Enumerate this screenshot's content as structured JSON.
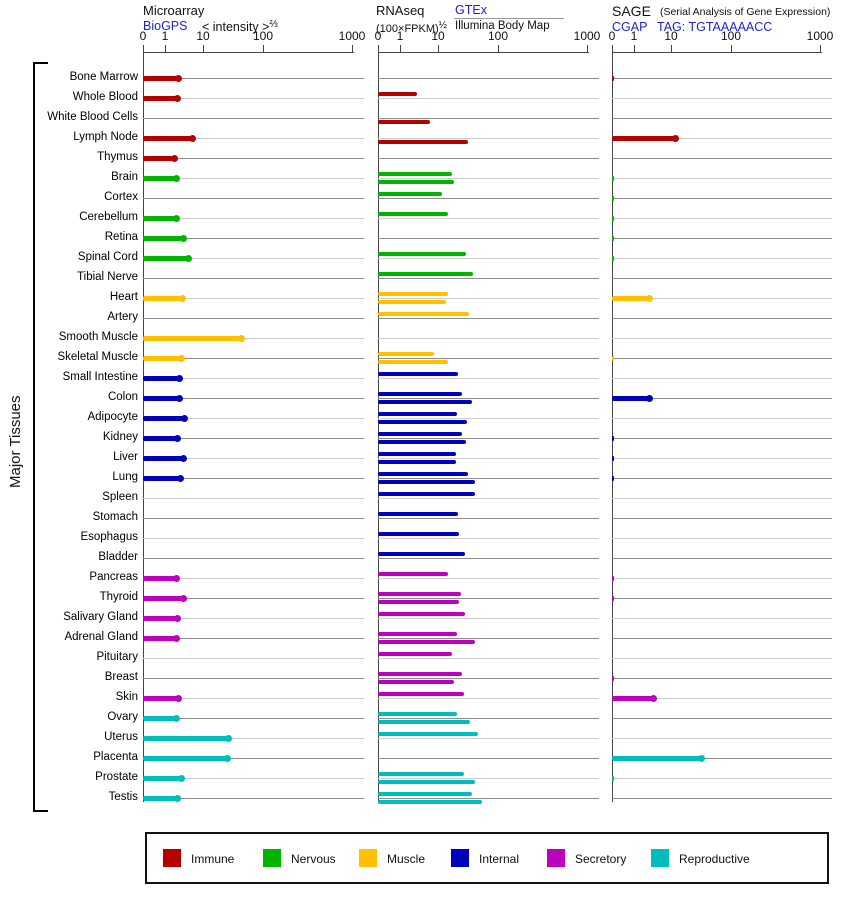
{
  "header": {
    "microarray": {
      "title": "Microarray",
      "link": "BioGPS",
      "units": "< intensity >",
      "units_sup": "⅔"
    },
    "rnaseq": {
      "title": "RNAseq",
      "units": "(100×FPKM)",
      "units_sup": "½",
      "source1": "GTEx",
      "source2": "Illumina Body Map"
    },
    "sage": {
      "title": "SAGE",
      "subtitle": "(Serial Analysis of Gene Expression)",
      "link": "CGAP",
      "tag": "TAG: TGTAAAAACC"
    }
  },
  "left_label": "Major Tissues",
  "axis": {
    "tick_labels": [
      "0",
      "1",
      "10",
      "100",
      "1000"
    ],
    "tick_values": [
      0,
      1,
      10,
      100,
      1000
    ]
  },
  "colors": {
    "link": "#2222cc",
    "axis": "#444444",
    "grid_dark": "#8d8d8d",
    "grid_light": "#cacaca"
  },
  "legend": {
    "items": [
      {
        "key": "immune",
        "label": "Immune"
      },
      {
        "key": "nervous",
        "label": "Nervous"
      },
      {
        "key": "muscle",
        "label": "Muscle"
      },
      {
        "key": "internal",
        "label": "Internal"
      },
      {
        "key": "secretory",
        "label": "Secretory"
      },
      {
        "key": "reproductive",
        "label": "Reproductive"
      }
    ]
  },
  "chart_data": {
    "type": "bar",
    "orientation": "horizontal",
    "x_scale": "zero-inset log scale, ticks at 0 / 1 / 10 / 100 / 1000",
    "xlim": [
      0,
      1000
    ],
    "title": "Gene expression in major tissues (Microarray / RNAseq / SAGE)",
    "group_colors": {
      "immune": "#b50000",
      "nervous": "#00b400",
      "muscle": "#ffc000",
      "internal": "#0000bd",
      "secretory": "#bd00bd",
      "reproductive": "#00bdbd"
    },
    "categories": [
      "Bone Marrow",
      "Whole Blood",
      "White Blood Cells",
      "Lymph Node",
      "Thymus",
      "Brain",
      "Cortex",
      "Cerebellum",
      "Retina",
      "Spinal Cord",
      "Tibial Nerve",
      "Heart",
      "Artery",
      "Smooth Muscle",
      "Skeletal Muscle",
      "Small Intestine",
      "Colon",
      "Adipocyte",
      "Kidney",
      "Liver",
      "Lung",
      "Spleen",
      "Stomach",
      "Esophagus",
      "Bladder",
      "Pancreas",
      "Thyroid",
      "Salivary Gland",
      "Adrenal Gland",
      "Pituitary",
      "Breast",
      "Skin",
      "Ovary",
      "Uterus",
      "Placenta",
      "Prostate",
      "Testis"
    ],
    "tissue_groups": [
      "immune",
      "immune",
      "immune",
      "immune",
      "immune",
      "nervous",
      "nervous",
      "nervous",
      "nervous",
      "nervous",
      "nervous",
      "muscle",
      "muscle",
      "muscle",
      "muscle",
      "internal",
      "internal",
      "internal",
      "internal",
      "internal",
      "internal",
      "internal",
      "internal",
      "internal",
      "internal",
      "secretory",
      "secretory",
      "secretory",
      "secretory",
      "secretory",
      "secretory",
      "secretory",
      "reproductive",
      "reproductive",
      "reproductive",
      "reproductive",
      "reproductive"
    ],
    "series": [
      {
        "name": "Microarray (BioGPS)",
        "panel": "microarray",
        "values": [
          2.4,
          2.2,
          null,
          5.7,
          1.9,
          2.1,
          null,
          2.1,
          3.3,
          4.5,
          null,
          3.1,
          null,
          45,
          2.9,
          2.5,
          2.5,
          3.5,
          2.2,
          3.3,
          2.7,
          null,
          null,
          null,
          null,
          2.1,
          3.3,
          2.2,
          2.1,
          null,
          null,
          2.4,
          2.1,
          27,
          26,
          2.9,
          2.2
        ]
      },
      {
        "name": "RNAseq (GTEx)",
        "panel": "rnaseq-top",
        "values": [
          null,
          2.8,
          null,
          null,
          null,
          17,
          12,
          15,
          null,
          30,
          38,
          15,
          33,
          null,
          8,
          22,
          25,
          21,
          25,
          20,
          32,
          41,
          22,
          23,
          29,
          15,
          24,
          29,
          21,
          17.5,
          25,
          27,
          21,
          46,
          null,
          27,
          37
        ]
      },
      {
        "name": "RNAseq (Illumina Body Map)",
        "panel": "rnaseq-bottom",
        "values": [
          null,
          null,
          6.2,
          32,
          null,
          18.5,
          null,
          null,
          null,
          null,
          null,
          13.5,
          null,
          null,
          15,
          null,
          37,
          31,
          30,
          20,
          41,
          null,
          null,
          null,
          null,
          null,
          23,
          null,
          41,
          null,
          18.5,
          null,
          35,
          null,
          null,
          41,
          54
        ]
      },
      {
        "name": "SAGE (CGAP, TAG: TGTAAAAACC)",
        "panel": "sage",
        "values": [
          0.1,
          null,
          null,
          12,
          null,
          0.1,
          0.1,
          0.1,
          0.1,
          0.1,
          null,
          2.7,
          null,
          null,
          0.1,
          null,
          2.7,
          null,
          0.1,
          0.1,
          0.1,
          null,
          null,
          null,
          null,
          0.1,
          0.1,
          null,
          null,
          null,
          0.1,
          3.4,
          null,
          null,
          32,
          0.1,
          null
        ]
      }
    ]
  }
}
